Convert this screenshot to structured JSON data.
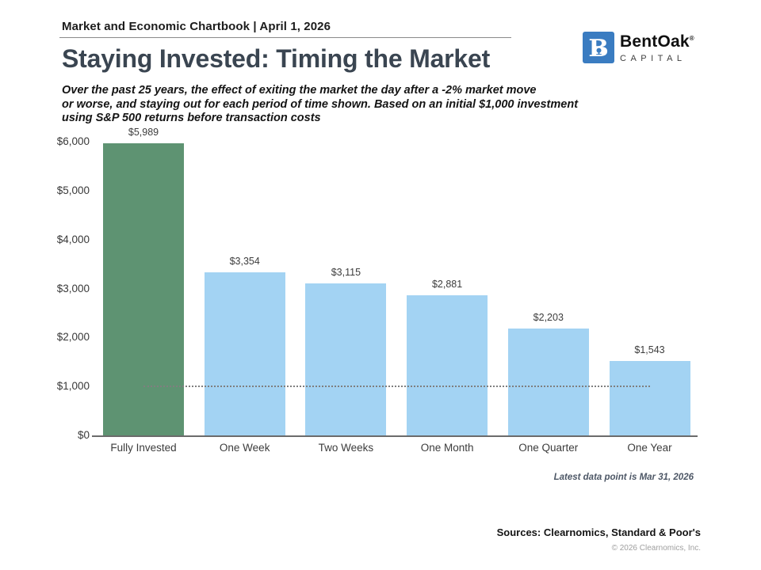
{
  "header": {
    "chartbook_title": "Market and Economic Chartbook | April 1, 2026"
  },
  "brand": {
    "name": "BentOak",
    "registered_mark": "®",
    "subtitle": "CAPITAL",
    "monogram": "B",
    "logo_color": "#3a7cc1"
  },
  "title": "Staying Invested: Timing the Market",
  "subtitle": {
    "lines": [
      "Over the past 25 years, the effect of exiting the market the day after a -2% market move",
      "or worse, and staying out for each period of time shown. Based on an initial $1,000 investment",
      "using S&P 500 returns before transaction costs"
    ]
  },
  "chart_data": {
    "type": "bar",
    "title": "",
    "xlabel": "",
    "ylabel": "",
    "categories": [
      "Fully Invested",
      "One Week",
      "Two Weeks",
      "One Month",
      "One Quarter",
      "One Year"
    ],
    "values": [
      5989,
      3354,
      3115,
      2881,
      2203,
      1543
    ],
    "value_labels": [
      "$5,989",
      "$3,354",
      "$3,115",
      "$2,881",
      "$2,203",
      "$1,543"
    ],
    "bar_colors": [
      "#5e9372",
      "#a3d3f3",
      "#a3d3f3",
      "#a3d3f3",
      "#a3d3f3",
      "#a3d3f3"
    ],
    "ylim": [
      0,
      6000
    ],
    "ytick_values": [
      0,
      1000,
      2000,
      3000,
      4000,
      5000,
      6000
    ],
    "ytick_labels": [
      "$0",
      "$1,000",
      "$2,000",
      "$3,000",
      "$4,000",
      "$5,000",
      "$6,000"
    ],
    "baseline": {
      "value": 1000,
      "meaning": "initial $1,000 investment",
      "style": "dotted"
    },
    "grid": false,
    "legend": false
  },
  "colors": {
    "highlight_green": "#5e9372",
    "bar_blue": "#a3d3f3",
    "title_slate": "#3a4551",
    "brand_blue": "#3a7cc1"
  },
  "footer": {
    "latest_note": "Latest data point is Mar 31, 2026",
    "sources": "Sources: Clearnomics, Standard & Poor's",
    "copyright": "© 2026 Clearnomics, Inc."
  }
}
